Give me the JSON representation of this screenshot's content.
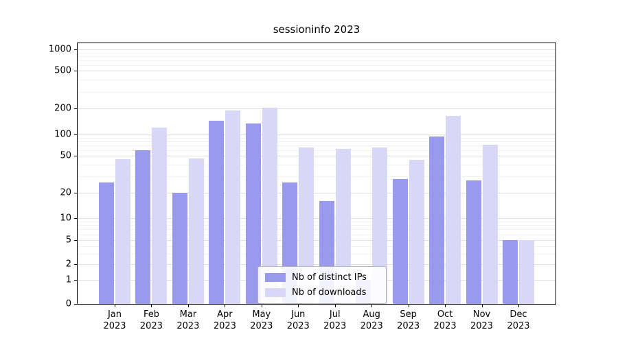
{
  "title": "sessioninfo 2023",
  "chart_data": {
    "type": "bar",
    "title": "sessioninfo 2023",
    "scale": "symlog",
    "grid": true,
    "legend_position": "inside-bottom-center",
    "ylim": [
      0,
      1000
    ],
    "yticks": [
      0,
      1,
      2,
      5,
      10,
      20,
      50,
      100,
      200,
      500,
      1000
    ],
    "categories_month": [
      "Jan",
      "Feb",
      "Mar",
      "Apr",
      "May",
      "Jun",
      "Jul",
      "Aug",
      "Sep",
      "Oct",
      "Nov",
      "Dec"
    ],
    "categories_year": "2023",
    "series": [
      {
        "name": "Nb of distinct IPs",
        "color": "#9999ee",
        "values": [
          26,
          60,
          20,
          145,
          135,
          26,
          16,
          1,
          28,
          93,
          27,
          5
        ]
      },
      {
        "name": "Nb of downloads",
        "color": "#d8d8f6",
        "values": [
          46,
          120,
          47,
          190,
          205,
          65,
          62,
          65,
          45,
          165,
          72,
          5
        ]
      }
    ]
  }
}
